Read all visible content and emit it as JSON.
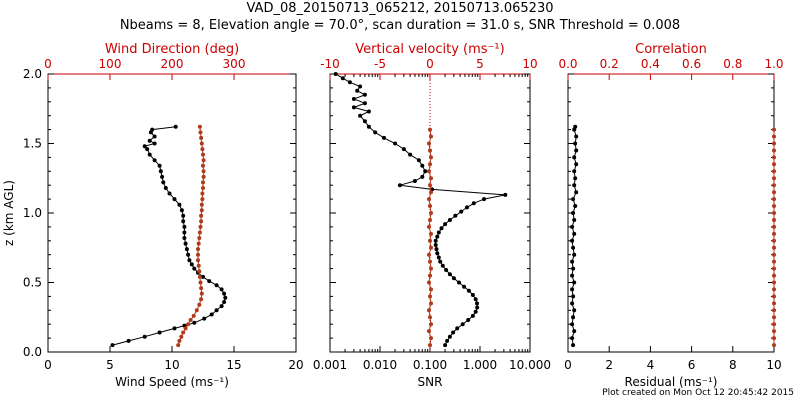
{
  "header": {
    "title": "VAD_08_20150713_065212, 20150713.065230",
    "subtitle": "Nbeams = 8, Elevation angle = 70.0°, scan duration = 31.0 s, SNR Threshold = 0.008"
  },
  "footer": {
    "credit": "Plot created on Mon Oct 12 20:45:42 2015"
  },
  "colors": {
    "primary": "#000000",
    "secondary": "#b03a1c",
    "secondary_axis": "#cc0000"
  },
  "chart_data": [
    {
      "type": "line",
      "ylabel": "z (km AGL)",
      "ylim": [
        0,
        2
      ],
      "yticks": [
        "0.0",
        "0.5",
        "1.0",
        "1.5",
        "2.0"
      ],
      "bottom_axis": {
        "label": "Wind Speed (ms⁻¹)",
        "range": [
          0,
          20
        ],
        "ticks": [
          "0",
          "5",
          "10",
          "15",
          "20"
        ]
      },
      "top_axis": {
        "label": "Wind Direction (deg)",
        "range": [
          0,
          400
        ],
        "ticks": [
          "0",
          "100",
          "200",
          "300"
        ]
      },
      "series": [
        {
          "axis": "bottom",
          "color": "#000000",
          "points": [
            [
              5.2,
              0.05
            ],
            [
              6.5,
              0.08
            ],
            [
              7.8,
              0.11
            ],
            [
              9.0,
              0.14
            ],
            [
              10.2,
              0.17
            ],
            [
              11.0,
              0.19
            ],
            [
              11.8,
              0.21
            ],
            [
              12.6,
              0.24
            ],
            [
              13.2,
              0.27
            ],
            [
              13.6,
              0.3
            ],
            [
              14.0,
              0.33
            ],
            [
              14.2,
              0.36
            ],
            [
              14.3,
              0.39
            ],
            [
              14.2,
              0.42
            ],
            [
              14.0,
              0.45
            ],
            [
              13.6,
              0.48
            ],
            [
              13.0,
              0.51
            ],
            [
              12.5,
              0.54
            ],
            [
              12.1,
              0.57
            ],
            [
              11.8,
              0.6
            ],
            [
              11.6,
              0.63
            ],
            [
              11.4,
              0.66
            ],
            [
              11.3,
              0.7
            ],
            [
              11.2,
              0.74
            ],
            [
              11.1,
              0.78
            ],
            [
              11.0,
              0.82
            ],
            [
              11.0,
              0.86
            ],
            [
              11.0,
              0.9
            ],
            [
              10.9,
              0.94
            ],
            [
              10.9,
              0.98
            ],
            [
              10.8,
              1.02
            ],
            [
              10.6,
              1.06
            ],
            [
              10.2,
              1.1
            ],
            [
              9.8,
              1.14
            ],
            [
              9.5,
              1.18
            ],
            [
              9.3,
              1.22
            ],
            [
              9.2,
              1.26
            ],
            [
              9.1,
              1.3
            ],
            [
              9.0,
              1.34
            ],
            [
              8.6,
              1.38
            ],
            [
              8.2,
              1.42
            ],
            [
              8.0,
              1.46
            ],
            [
              7.8,
              1.48
            ],
            [
              8.6,
              1.5
            ],
            [
              8.2,
              1.52
            ],
            [
              8.6,
              1.55
            ],
            [
              8.3,
              1.58
            ],
            [
              8.4,
              1.6
            ],
            [
              10.3,
              1.62
            ]
          ]
        },
        {
          "axis": "top",
          "color": "#b03a1c",
          "points": [
            [
              210,
              0.05
            ],
            [
              212,
              0.08
            ],
            [
              215,
              0.11
            ],
            [
              218,
              0.14
            ],
            [
              222,
              0.17
            ],
            [
              226,
              0.2
            ],
            [
              230,
              0.23
            ],
            [
              235,
              0.26
            ],
            [
              240,
              0.3
            ],
            [
              244,
              0.34
            ],
            [
              247,
              0.38
            ],
            [
              248,
              0.42
            ],
            [
              247,
              0.46
            ],
            [
              246,
              0.5
            ],
            [
              245,
              0.54
            ],
            [
              244,
              0.58
            ],
            [
              243,
              0.62
            ],
            [
              242,
              0.66
            ],
            [
              242,
              0.7
            ],
            [
              242,
              0.74
            ],
            [
              243,
              0.78
            ],
            [
              244,
              0.82
            ],
            [
              245,
              0.86
            ],
            [
              246,
              0.9
            ],
            [
              247,
              0.94
            ],
            [
              247,
              0.98
            ],
            [
              248,
              1.02
            ],
            [
              248,
              1.06
            ],
            [
              249,
              1.1
            ],
            [
              249,
              1.14
            ],
            [
              250,
              1.18
            ],
            [
              250,
              1.22
            ],
            [
              251,
              1.26
            ],
            [
              251,
              1.3
            ],
            [
              250,
              1.34
            ],
            [
              251,
              1.38
            ],
            [
              250,
              1.42
            ],
            [
              249,
              1.46
            ],
            [
              248,
              1.5
            ],
            [
              247,
              1.54
            ],
            [
              246,
              1.58
            ],
            [
              245,
              1.62
            ]
          ]
        }
      ]
    },
    {
      "type": "line",
      "ylim": [
        0,
        2
      ],
      "bottom_axis": {
        "label": "SNR",
        "scale": "log",
        "range": [
          0.001,
          10
        ],
        "ticks": [
          "0.001",
          "0.010",
          "0.100",
          "1.000",
          "10.000"
        ]
      },
      "top_axis": {
        "label": "Vertical velocity (ms⁻¹)",
        "range": [
          -10,
          10
        ],
        "ticks": [
          "-10",
          "-5",
          "0",
          "5",
          "10"
        ]
      },
      "series": [
        {
          "axis": "bottom",
          "color": "#000000",
          "points": [
            [
              0.2,
              0.05
            ],
            [
              0.22,
              0.08
            ],
            [
              0.25,
              0.11
            ],
            [
              0.29,
              0.14
            ],
            [
              0.35,
              0.17
            ],
            [
              0.45,
              0.2
            ],
            [
              0.58,
              0.23
            ],
            [
              0.72,
              0.26
            ],
            [
              0.82,
              0.29
            ],
            [
              0.88,
              0.32
            ],
            [
              0.87,
              0.35
            ],
            [
              0.82,
              0.38
            ],
            [
              0.72,
              0.41
            ],
            [
              0.6,
              0.44
            ],
            [
              0.48,
              0.47
            ],
            [
              0.38,
              0.5
            ],
            [
              0.3,
              0.53
            ],
            [
              0.25,
              0.56
            ],
            [
              0.21,
              0.59
            ],
            [
              0.18,
              0.62
            ],
            [
              0.16,
              0.65
            ],
            [
              0.15,
              0.68
            ],
            [
              0.14,
              0.71
            ],
            [
              0.135,
              0.74
            ],
            [
              0.13,
              0.77
            ],
            [
              0.13,
              0.8
            ],
            [
              0.14,
              0.83
            ],
            [
              0.15,
              0.86
            ],
            [
              0.17,
              0.89
            ],
            [
              0.2,
              0.92
            ],
            [
              0.25,
              0.95
            ],
            [
              0.32,
              0.98
            ],
            [
              0.42,
              1.01
            ],
            [
              0.55,
              1.04
            ],
            [
              0.75,
              1.07
            ],
            [
              1.2,
              1.1
            ],
            [
              3.2,
              1.13
            ],
            [
              0.11,
              1.17
            ],
            [
              0.025,
              1.2
            ],
            [
              0.05,
              1.23
            ],
            [
              0.07,
              1.26
            ],
            [
              0.08,
              1.3
            ],
            [
              0.07,
              1.34
            ],
            [
              0.06,
              1.38
            ],
            [
              0.04,
              1.42
            ],
            [
              0.03,
              1.46
            ],
            [
              0.02,
              1.5
            ],
            [
              0.012,
              1.54
            ],
            [
              0.008,
              1.58
            ],
            [
              0.006,
              1.62
            ],
            [
              0.005,
              1.66
            ],
            [
              0.004,
              1.7
            ],
            [
              0.006,
              1.73
            ],
            [
              0.003,
              1.76
            ],
            [
              0.005,
              1.79
            ],
            [
              0.003,
              1.82
            ],
            [
              0.005,
              1.85
            ],
            [
              0.0035,
              1.88
            ],
            [
              0.004,
              1.91
            ],
            [
              0.0025,
              1.94
            ],
            [
              0.0018,
              1.97
            ],
            [
              0.0013,
              2.0
            ]
          ]
        },
        {
          "axis": "top",
          "color": "#b03a1c",
          "points": [
            [
              0,
              0.05
            ],
            [
              0.1,
              0.1
            ],
            [
              -0.1,
              0.15
            ],
            [
              0.1,
              0.2
            ],
            [
              0,
              0.25
            ],
            [
              -0.1,
              0.3
            ],
            [
              0.1,
              0.35
            ],
            [
              0,
              0.4
            ],
            [
              0.1,
              0.45
            ],
            [
              -0.1,
              0.5
            ],
            [
              0,
              0.55
            ],
            [
              0.1,
              0.6
            ],
            [
              0,
              0.65
            ],
            [
              -0.1,
              0.7
            ],
            [
              0.1,
              0.75
            ],
            [
              0,
              0.8
            ],
            [
              0.1,
              0.85
            ],
            [
              -0.1,
              0.9
            ],
            [
              0,
              0.95
            ],
            [
              0.1,
              1.0
            ],
            [
              0,
              1.05
            ],
            [
              -0.1,
              1.1
            ],
            [
              0.1,
              1.15
            ],
            [
              0,
              1.2
            ],
            [
              0.1,
              1.25
            ],
            [
              -0.1,
              1.3
            ],
            [
              0,
              1.35
            ],
            [
              0.1,
              1.4
            ],
            [
              0,
              1.45
            ],
            [
              -0.1,
              1.5
            ],
            [
              0.1,
              1.55
            ],
            [
              0,
              1.6
            ]
          ]
        }
      ]
    },
    {
      "type": "line",
      "ylim": [
        0,
        2
      ],
      "bottom_axis": {
        "label": "Residual (ms⁻¹)",
        "range": [
          0,
          10
        ],
        "ticks": [
          "0",
          "2",
          "4",
          "6",
          "8",
          "10"
        ]
      },
      "top_axis": {
        "label": "Correlation",
        "range": [
          0,
          1
        ],
        "ticks": [
          "0.0",
          "0.2",
          "0.4",
          "0.6",
          "0.8",
          "1.0"
        ]
      },
      "series": [
        {
          "axis": "bottom",
          "color": "#000000",
          "points": [
            [
              0.25,
              0.05
            ],
            [
              0.2,
              0.1
            ],
            [
              0.3,
              0.15
            ],
            [
              0.2,
              0.2
            ],
            [
              0.25,
              0.25
            ],
            [
              0.3,
              0.3
            ],
            [
              0.2,
              0.35
            ],
            [
              0.25,
              0.4
            ],
            [
              0.2,
              0.45
            ],
            [
              0.3,
              0.5
            ],
            [
              0.2,
              0.55
            ],
            [
              0.25,
              0.6
            ],
            [
              0.2,
              0.65
            ],
            [
              0.3,
              0.7
            ],
            [
              0.25,
              0.75
            ],
            [
              0.2,
              0.8
            ],
            [
              0.3,
              0.85
            ],
            [
              0.2,
              0.9
            ],
            [
              0.3,
              0.95
            ],
            [
              0.25,
              1.0
            ],
            [
              0.35,
              1.05
            ],
            [
              0.25,
              1.1
            ],
            [
              0.4,
              1.15
            ],
            [
              0.3,
              1.2
            ],
            [
              0.35,
              1.25
            ],
            [
              0.3,
              1.3
            ],
            [
              0.4,
              1.35
            ],
            [
              0.3,
              1.4
            ],
            [
              0.4,
              1.45
            ],
            [
              0.35,
              1.5
            ],
            [
              0.4,
              1.55
            ],
            [
              0.3,
              1.6
            ],
            [
              0.35,
              1.62
            ]
          ]
        },
        {
          "axis": "top",
          "color": "#b03a1c",
          "points": [
            [
              1.0,
              0.05
            ],
            [
              1.0,
              0.1
            ],
            [
              1.0,
              0.15
            ],
            [
              1.0,
              0.2
            ],
            [
              1.0,
              0.25
            ],
            [
              1.0,
              0.3
            ],
            [
              1.0,
              0.35
            ],
            [
              1.0,
              0.4
            ],
            [
              1.0,
              0.45
            ],
            [
              1.0,
              0.5
            ],
            [
              1.0,
              0.55
            ],
            [
              1.0,
              0.6
            ],
            [
              1.0,
              0.65
            ],
            [
              1.0,
              0.7
            ],
            [
              1.0,
              0.75
            ],
            [
              1.0,
              0.8
            ],
            [
              1.0,
              0.85
            ],
            [
              1.0,
              0.9
            ],
            [
              1.0,
              0.95
            ],
            [
              1.0,
              1.0
            ],
            [
              1.0,
              1.05
            ],
            [
              1.0,
              1.1
            ],
            [
              1.0,
              1.15
            ],
            [
              1.0,
              1.2
            ],
            [
              1.0,
              1.25
            ],
            [
              1.0,
              1.3
            ],
            [
              1.0,
              1.35
            ],
            [
              1.0,
              1.4
            ],
            [
              1.0,
              1.45
            ],
            [
              1.0,
              1.5
            ],
            [
              1.0,
              1.55
            ],
            [
              1.0,
              1.6
            ]
          ]
        }
      ]
    }
  ]
}
